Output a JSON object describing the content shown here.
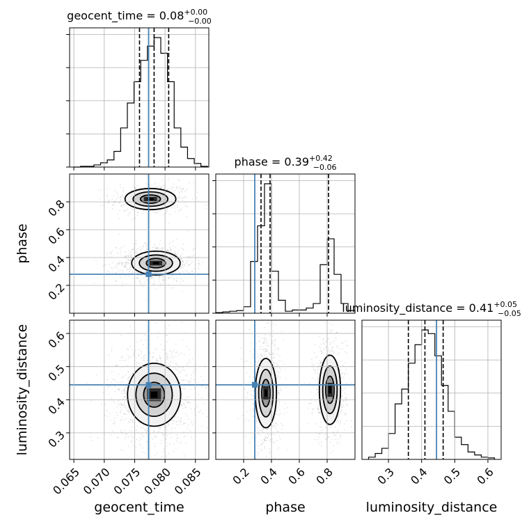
{
  "chart_data": {
    "type": "corner",
    "parameters": [
      "geocent_time",
      "phase",
      "luminosity_distance"
    ],
    "truths": {
      "geocent_time": 0.0773,
      "phase": 0.28,
      "luminosity_distance": 0.445
    },
    "truth_color": "#4682b4",
    "ranges": {
      "geocent_time": [
        0.0643,
        0.0872
      ],
      "phase": [
        0.0,
        1.0
      ],
      "luminosity_distance": [
        0.22,
        0.64
      ]
    },
    "ticks": {
      "geocent_time": [
        0.065,
        0.07,
        0.075,
        0.08,
        0.085
      ],
      "phase": [
        0.2,
        0.4,
        0.6,
        0.8
      ],
      "luminosity_distance": [
        0.3,
        0.4,
        0.5,
        0.6
      ]
    },
    "tick_labels": {
      "geocent_time": [
        "0.065",
        "0.070",
        "0.075",
        "0.080",
        "0.085"
      ],
      "phase": [
        "0.2",
        "0.4",
        "0.6",
        "0.8"
      ],
      "luminosity_distance": [
        "0.3",
        "0.4",
        "0.5",
        "0.6"
      ]
    },
    "titles": [
      {
        "param": "geocent_time",
        "text": "geocent_time = 0.08",
        "plus": "+0.00",
        "minus": "−0.00"
      },
      {
        "param": "phase",
        "text": "phase = 0.39",
        "plus": "+0.42",
        "minus": "−0.06"
      },
      {
        "param": "luminosity_distance",
        "text": "luminosity_distance = 0.41",
        "plus": "+0.05",
        "minus": "−0.05"
      }
    ],
    "axis_labels": {
      "x": [
        "geocent_time",
        "phase",
        "luminosity_distance"
      ],
      "y": [
        "phase",
        "luminosity_distance"
      ]
    },
    "quantiles": {
      "geocent_time": [
        0.0758,
        0.0782,
        0.0806
      ],
      "phase": [
        0.325,
        0.39,
        0.81
      ],
      "luminosity_distance": [
        0.36,
        0.41,
        0.465
      ]
    },
    "histograms": {
      "geocent_time": {
        "edges": [
          0.065,
          0.0661,
          0.0672,
          0.0683,
          0.0694,
          0.0705,
          0.0716,
          0.0727,
          0.0738,
          0.0749,
          0.076,
          0.0771,
          0.0782,
          0.0793,
          0.0804,
          0.0815,
          0.0826,
          0.0837,
          0.0848,
          0.0859,
          0.087
        ],
        "counts": [
          0,
          1,
          1,
          3,
          6,
          10,
          22,
          55,
          90,
          120,
          150,
          170,
          182,
          160,
          120,
          55,
          28,
          12,
          5,
          1
        ]
      },
      "phase": {
        "edges": [
          0.0,
          0.05,
          0.1,
          0.15,
          0.2,
          0.25,
          0.3,
          0.35,
          0.4,
          0.45,
          0.5,
          0.55,
          0.6,
          0.65,
          0.7,
          0.75,
          0.8,
          0.85,
          0.9,
          0.95,
          1.0
        ],
        "counts": [
          1,
          2,
          3,
          4,
          10,
          80,
          135,
          200,
          65,
          20,
          3,
          5,
          5,
          8,
          15,
          75,
          115,
          60,
          15,
          4
        ]
      },
      "luminosity_distance": {
        "edges": [
          0.24,
          0.26,
          0.28,
          0.3,
          0.32,
          0.34,
          0.36,
          0.38,
          0.4,
          0.42,
          0.44,
          0.46,
          0.48,
          0.5,
          0.52,
          0.54,
          0.56,
          0.58,
          0.6,
          0.62
        ],
        "counts": [
          3,
          8,
          15,
          35,
          75,
          95,
          130,
          155,
          175,
          170,
          140,
          100,
          65,
          30,
          20,
          10,
          6,
          3,
          2
        ]
      }
    },
    "pairs": [
      {
        "x": "geocent_time",
        "y": "phase",
        "blobs": [
          {
            "cx": 0.0776,
            "cy": 0.82,
            "sx": 0.0022,
            "sy": 0.04,
            "n": 450
          },
          {
            "cx": 0.0785,
            "cy": 0.36,
            "sx": 0.0021,
            "sy": 0.045,
            "n": 900
          }
        ]
      },
      {
        "x": "geocent_time",
        "y": "luminosity_distance",
        "blobs": [
          {
            "cx": 0.0782,
            "cy": 0.415,
            "sx": 0.0023,
            "sy": 0.05,
            "n": 1300
          }
        ]
      },
      {
        "x": "phase",
        "y": "luminosity_distance",
        "blobs": [
          {
            "cx": 0.36,
            "cy": 0.42,
            "sx": 0.04,
            "sy": 0.055,
            "n": 800
          },
          {
            "cx": 0.82,
            "cy": 0.43,
            "sx": 0.04,
            "sy": 0.055,
            "n": 600
          }
        ]
      }
    ]
  }
}
